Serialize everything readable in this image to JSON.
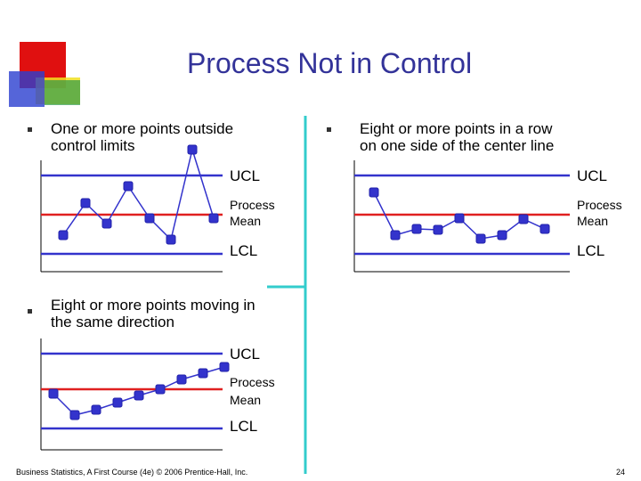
{
  "title": "Process Not in Control",
  "panels": [
    {
      "bullet": [
        "One or more points outside",
        "control limits"
      ],
      "ucl": "UCL",
      "mean": [
        "Process",
        "Mean"
      ],
      "lcl": "LCL"
    },
    {
      "bullet": [
        "Eight or more points in a row",
        "on one side of the center line"
      ],
      "ucl": "UCL",
      "mean": [
        "Process",
        "Mean"
      ],
      "lcl": "LCL"
    },
    {
      "bullet": [
        "Eight or more points moving in",
        "the same direction"
      ],
      "ucl": "UCL",
      "mean": [
        "Process",
        "Mean"
      ],
      "lcl": "LCL"
    }
  ],
  "footer": {
    "source": "Business Statistics, A First Course (4e) © 2006 Prentice-Hall, Inc.",
    "page": "24"
  }
}
